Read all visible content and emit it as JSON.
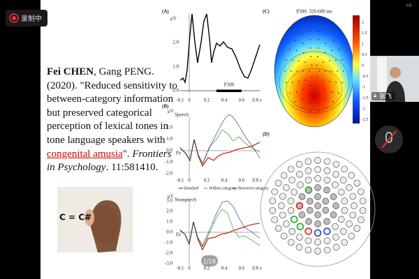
{
  "recording": "录制中",
  "page_number": "48",
  "citation": {
    "line1": {
      "author_bold": "Fei CHEN",
      "rest": ", Gang PENG."
    },
    "middle_lines": [
      "(2020). \"Reduced sensitivity to",
      "between-category information",
      "but preserved categorical",
      "perception of lexical tones in",
      "tone language speakers with"
    ],
    "line7": {
      "highlight": "congenital amusia",
      "rest": "\". ",
      "journal": "Frontiers"
    },
    "line8": {
      "journal": "in Psychology",
      "rest": ". 11:581410."
    }
  },
  "illustration_text": "C = C#",
  "figure": {
    "panel_a": {
      "label": "(A)",
      "unit": "μV",
      "yticks": [
        "2.0",
        "1.0",
        "0.0"
      ],
      "xticks": [
        "-0.1",
        "0",
        "0.2",
        "0.4",
        "0.6",
        "0.8 s"
      ],
      "window": "P300"
    },
    "panel_b": {
      "label": "(B)",
      "speech": {
        "title": "Speech",
        "unit": "μV",
        "electrode": "Pz",
        "yticks": [
          "2.0",
          "1.0",
          "0.0",
          "-1.0",
          "-2.0"
        ],
        "xticks": [
          "-0.1",
          "0",
          "0.2",
          "0.4",
          "0.6",
          "0.8 s"
        ]
      },
      "legend": [
        "Standard",
        "Within-category",
        "Between-category"
      ],
      "nonspeech": {
        "title": "Nonspeech",
        "unit": "μV",
        "electrode": "Pz",
        "yticks": [
          "3.0",
          "2.0",
          "1.0",
          "0.0",
          "-1.0",
          "-2.0",
          "-3.0"
        ],
        "xticks": [
          "-0.1",
          "0",
          "0.2",
          "0.4",
          "0.6",
          "0.8 s"
        ]
      }
    },
    "panel_c": {
      "label": "(C)",
      "title": "P300: 320-600 ms",
      "colorbar_ticks": [
        "2",
        "1.5",
        "1",
        "0.5",
        "0",
        "-0.5",
        "-1",
        "-1.5",
        "-2",
        "-2.5"
      ]
    },
    "panel_d": {
      "label": "(D)"
    }
  },
  "slide_counter": "1/18",
  "participant": {
    "name": "张飞"
  }
}
